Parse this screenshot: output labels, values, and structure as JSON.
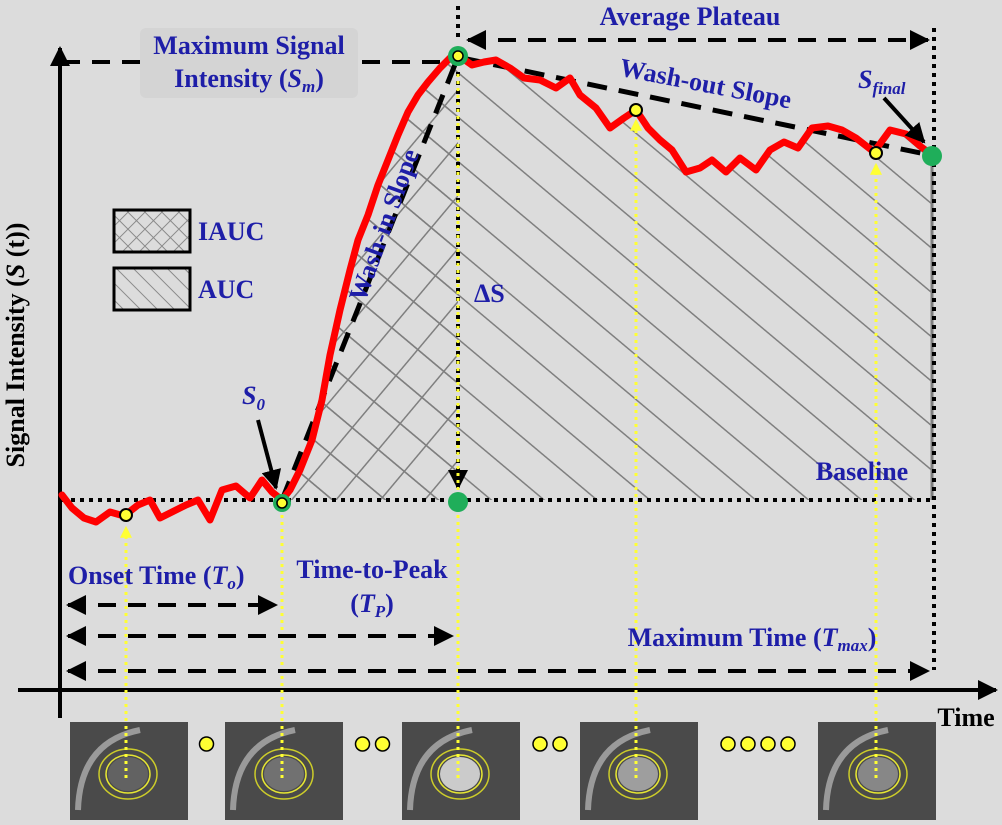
{
  "colors": {
    "background": "#dcdcdc",
    "curve": "#ff0000",
    "label_text": "#1e1ea8",
    "dashed_line": "#000000",
    "hatch": "#7f7f7f",
    "marker_yellow": "#ffff33",
    "marker_green": "#1fae5a",
    "thumbnail_bg": "#4a4a4a"
  },
  "axes": {
    "y_label": {
      "main": "Signal Intensity (",
      "var": "S",
      "arg": " (t)",
      "close": ")"
    },
    "x_label": "Time"
  },
  "legend": [
    {
      "label": "IAUC",
      "pattern": "crosshatch"
    },
    {
      "label": "AUC",
      "pattern": "diagonal-hatch"
    }
  ],
  "labels": {
    "max_signal_line1": "Maximum Signal",
    "max_signal_line2": "Intensity (",
    "max_signal_var": "S",
    "max_signal_sub": "m",
    "max_signal_close": ")",
    "average_plateau": "Average Plateau",
    "wash_out_slope": "Wash-out Slope",
    "wash_in_slope": "Wash-in Slope",
    "s_final_var": "S",
    "s_final_sub": "final",
    "delta_s": "ΔS",
    "s0_var": "S",
    "s0_sub": "0",
    "baseline": "Baseline",
    "onset_time": "Onset Time (",
    "onset_var": "T",
    "onset_sub": "o",
    "onset_close": ")",
    "time_to_peak_line1": "Time-to-Peak",
    "time_to_peak_open": "(",
    "time_to_peak_var": "T",
    "time_to_peak_sub": "P",
    "time_to_peak_close": ")",
    "max_time": "Maximum Time (",
    "max_time_var": "T",
    "max_time_sub": "max",
    "max_time_close": ")"
  },
  "thumbnails": [
    {
      "name": "frame-onset"
    },
    {
      "name": "frame-s0"
    },
    {
      "name": "frame-peak"
    },
    {
      "name": "frame-plateau"
    },
    {
      "name": "frame-final"
    }
  ],
  "dot_groups": [
    1,
    2,
    2,
    4
  ]
}
